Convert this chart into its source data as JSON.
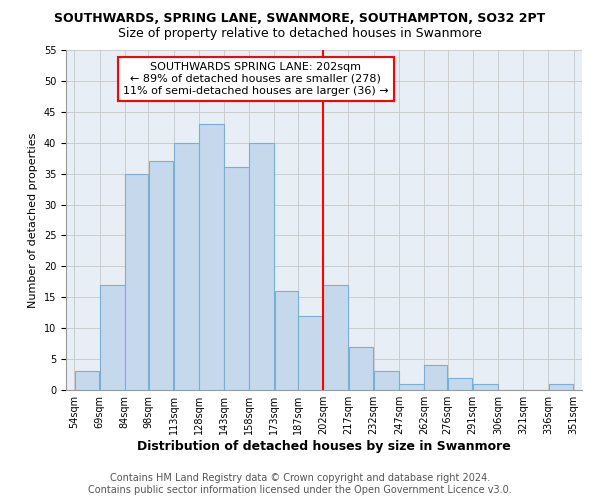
{
  "title": "SOUTHWARDS, SPRING LANE, SWANMORE, SOUTHAMPTON, SO32 2PT",
  "subtitle": "Size of property relative to detached houses in Swanmore",
  "xlabel": "Distribution of detached houses by size in Swanmore",
  "ylabel": "Number of detached properties",
  "bin_edges": [
    54,
    69,
    84,
    98,
    113,
    128,
    143,
    158,
    173,
    187,
    202,
    217,
    232,
    247,
    262,
    276,
    291,
    306,
    321,
    336,
    351
  ],
  "counts": [
    3,
    17,
    35,
    37,
    40,
    43,
    36,
    40,
    16,
    12,
    17,
    7,
    3,
    1,
    4,
    2,
    1,
    0,
    0,
    1
  ],
  "bar_color": "#c6d9ec",
  "bar_edge_color": "#7aafd4",
  "vline_x": 202,
  "vline_color": "red",
  "annotation_title": "SOUTHWARDS SPRING LANE: 202sqm",
  "annotation_line1": "← 89% of detached houses are smaller (278)",
  "annotation_line2": "11% of semi-detached houses are larger (36) →",
  "annotation_box_color": "#ffffff",
  "annotation_border_color": "red",
  "ylim": [
    0,
    55
  ],
  "yticks": [
    0,
    5,
    10,
    15,
    20,
    25,
    30,
    35,
    40,
    45,
    50,
    55
  ],
  "footer_line1": "Contains HM Land Registry data © Crown copyright and database right 2024.",
  "footer_line2": "Contains public sector information licensed under the Open Government Licence v3.0.",
  "title_fontsize": 9,
  "subtitle_fontsize": 9,
  "tick_label_fontsize": 7,
  "ylabel_fontsize": 8,
  "xlabel_fontsize": 9,
  "annotation_fontsize": 8,
  "footer_fontsize": 7
}
